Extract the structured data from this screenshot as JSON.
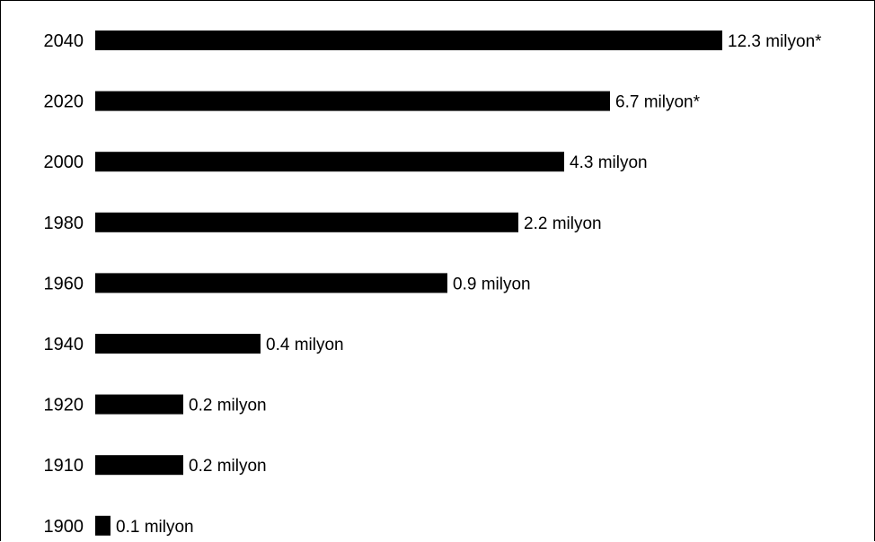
{
  "chart_data": {
    "type": "bar",
    "orientation": "horizontal",
    "categories": [
      "2040",
      "2020",
      "2000",
      "1980",
      "1960",
      "1940",
      "1920",
      "1910",
      "1900"
    ],
    "values": [
      12.3,
      6.7,
      4.3,
      2.2,
      0.9,
      0.4,
      0.2,
      0.2,
      0.1
    ],
    "value_labels": [
      "12.3 milyon*",
      "6.7 milyon*",
      "4.3 milyon",
      "2.2 milyon",
      "0.9 milyon",
      "0.4 milyon",
      "0.2 milyon",
      "0.2 milyon",
      "0.1 milyon"
    ],
    "bar_color": "#000000",
    "grid": false,
    "legend": "none"
  }
}
